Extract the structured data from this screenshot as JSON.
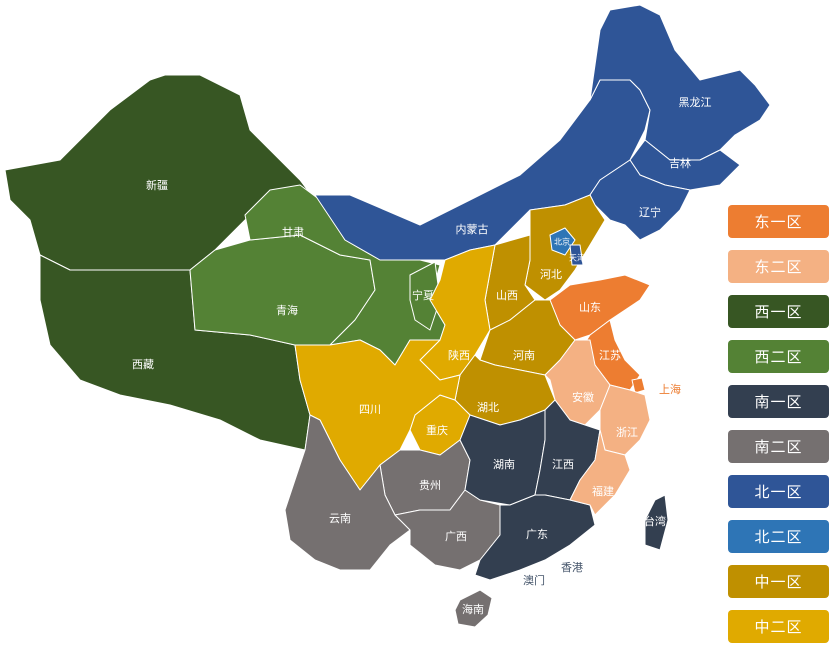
{
  "zones": [
    {
      "key": "e1",
      "label": "东一区",
      "color": "#ED7D31"
    },
    {
      "key": "e2",
      "label": "东二区",
      "color": "#F4B183"
    },
    {
      "key": "w1",
      "label": "西一区",
      "color": "#375623"
    },
    {
      "key": "w2",
      "label": "西二区",
      "color": "#548235"
    },
    {
      "key": "s1",
      "label": "南一区",
      "color": "#333F50"
    },
    {
      "key": "s2",
      "label": "南二区",
      "color": "#757070"
    },
    {
      "key": "n1",
      "label": "北一区",
      "color": "#2F5597"
    },
    {
      "key": "n2",
      "label": "北二区",
      "color": "#2E75B6"
    },
    {
      "key": "c1",
      "label": "中一区",
      "color": "#BF9000"
    },
    {
      "key": "c2",
      "label": "中二区",
      "color": "#E0AA00"
    }
  ],
  "provinces": [
    {
      "id": "xinjiang",
      "name": "新疆",
      "zone": "w1"
    },
    {
      "id": "tibet",
      "name": "西藏",
      "zone": "w1"
    },
    {
      "id": "qinghai",
      "name": "青海",
      "zone": "w2"
    },
    {
      "id": "gansu",
      "name": "甘肃",
      "zone": "w2"
    },
    {
      "id": "ningxia",
      "name": "宁夏",
      "zone": "w2"
    },
    {
      "id": "neimenggu",
      "name": "内蒙古",
      "zone": "n1"
    },
    {
      "id": "heilongjiang",
      "name": "黑龙江",
      "zone": "n1"
    },
    {
      "id": "jilin",
      "name": "吉林",
      "zone": "n1"
    },
    {
      "id": "liaoning",
      "name": "辽宁",
      "zone": "n1"
    },
    {
      "id": "hebei",
      "name": "河北",
      "zone": "c1"
    },
    {
      "id": "beijing",
      "name": "北京",
      "zone": "n2"
    },
    {
      "id": "tianjin",
      "name": "天津",
      "zone": "n1"
    },
    {
      "id": "shanxi",
      "name": "山西",
      "zone": "c1"
    },
    {
      "id": "shaanxi",
      "name": "陕西",
      "zone": "c2"
    },
    {
      "id": "shandong",
      "name": "山东",
      "zone": "e1"
    },
    {
      "id": "henan",
      "name": "河南",
      "zone": "c1"
    },
    {
      "id": "jiangsu",
      "name": "江苏",
      "zone": "e1"
    },
    {
      "id": "shanghai",
      "name": "上海",
      "zone": "e1"
    },
    {
      "id": "anhui",
      "name": "安徽",
      "zone": "e2"
    },
    {
      "id": "hubei",
      "name": "湖北",
      "zone": "c1"
    },
    {
      "id": "chongqing",
      "name": "重庆",
      "zone": "c2"
    },
    {
      "id": "sichuan",
      "name": "四川",
      "zone": "c2"
    },
    {
      "id": "guizhou",
      "name": "贵州",
      "zone": "s2"
    },
    {
      "id": "yunnan",
      "name": "云南",
      "zone": "s2"
    },
    {
      "id": "guangxi",
      "name": "广西",
      "zone": "s2"
    },
    {
      "id": "hunan",
      "name": "湖南",
      "zone": "s1"
    },
    {
      "id": "jiangxi",
      "name": "江西",
      "zone": "s1"
    },
    {
      "id": "guangdong",
      "name": "广东",
      "zone": "s1"
    },
    {
      "id": "hainan",
      "name": "海南",
      "zone": "s2"
    },
    {
      "id": "zhejiang",
      "name": "浙江",
      "zone": "e2"
    },
    {
      "id": "fujian",
      "name": "福建",
      "zone": "e2"
    },
    {
      "id": "taiwan",
      "name": "台湾",
      "zone": "s1"
    }
  ],
  "extra_labels": [
    {
      "id": "hongkong",
      "name": "香港",
      "color": "#44546A"
    },
    {
      "id": "macau",
      "name": "澳门",
      "color": "#44546A"
    }
  ]
}
